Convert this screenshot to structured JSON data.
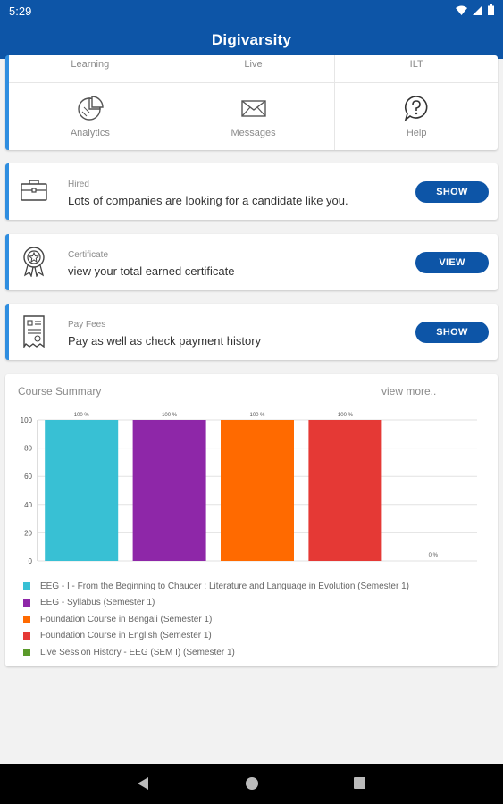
{
  "status": {
    "time": "5:29"
  },
  "app": {
    "title": "Digivarsity"
  },
  "grid": {
    "top_row": [
      "Learning",
      "Live",
      "ILT"
    ],
    "items": [
      {
        "label": "Analytics",
        "icon": "analytics-icon"
      },
      {
        "label": "Messages",
        "icon": "messages-icon"
      },
      {
        "label": "Help",
        "icon": "help-icon"
      }
    ]
  },
  "cards": [
    {
      "label": "Hired",
      "text": "Lots of companies are looking for a candidate like you.",
      "button": "SHOW",
      "icon": "briefcase-icon"
    },
    {
      "label": "Certificate",
      "text": "view your total earned certificate",
      "button": "VIEW",
      "icon": "certificate-icon"
    },
    {
      "label": "Pay Fees",
      "text": "Pay as well as check payment history",
      "button": "SHOW",
      "icon": "receipt-icon"
    }
  ],
  "summary": {
    "title": "Course Summary",
    "view_more": "view more.."
  },
  "colors": {
    "primary": "#0d55a7",
    "accent": "#2f8ee0"
  },
  "chart_data": {
    "type": "bar",
    "ylim": [
      0,
      100
    ],
    "yticks": [
      0,
      20,
      40,
      60,
      80,
      100
    ],
    "grid": true,
    "series": [
      {
        "name": "EEG - I - From the Beginning to Chaucer : Literature and Language in Evolution (Semester 1)",
        "value": 100,
        "label": "100 %",
        "color": "#38c0d4"
      },
      {
        "name": "EEG - Syllabus (Semester 1)",
        "value": 100,
        "label": "100 %",
        "color": "#8e27a8"
      },
      {
        "name": "Foundation Course in Bengali (Semester 1)",
        "value": 100,
        "label": "100 %",
        "color": "#ff6a00"
      },
      {
        "name": "Foundation Course in English  (Semester 1)",
        "value": 100,
        "label": "100 %",
        "color": "#e53935"
      },
      {
        "name": "Live Session History - EEG (SEM I) (Semester 1)",
        "value": 0,
        "label": "0 %",
        "color": "#5a9a2a"
      }
    ]
  }
}
